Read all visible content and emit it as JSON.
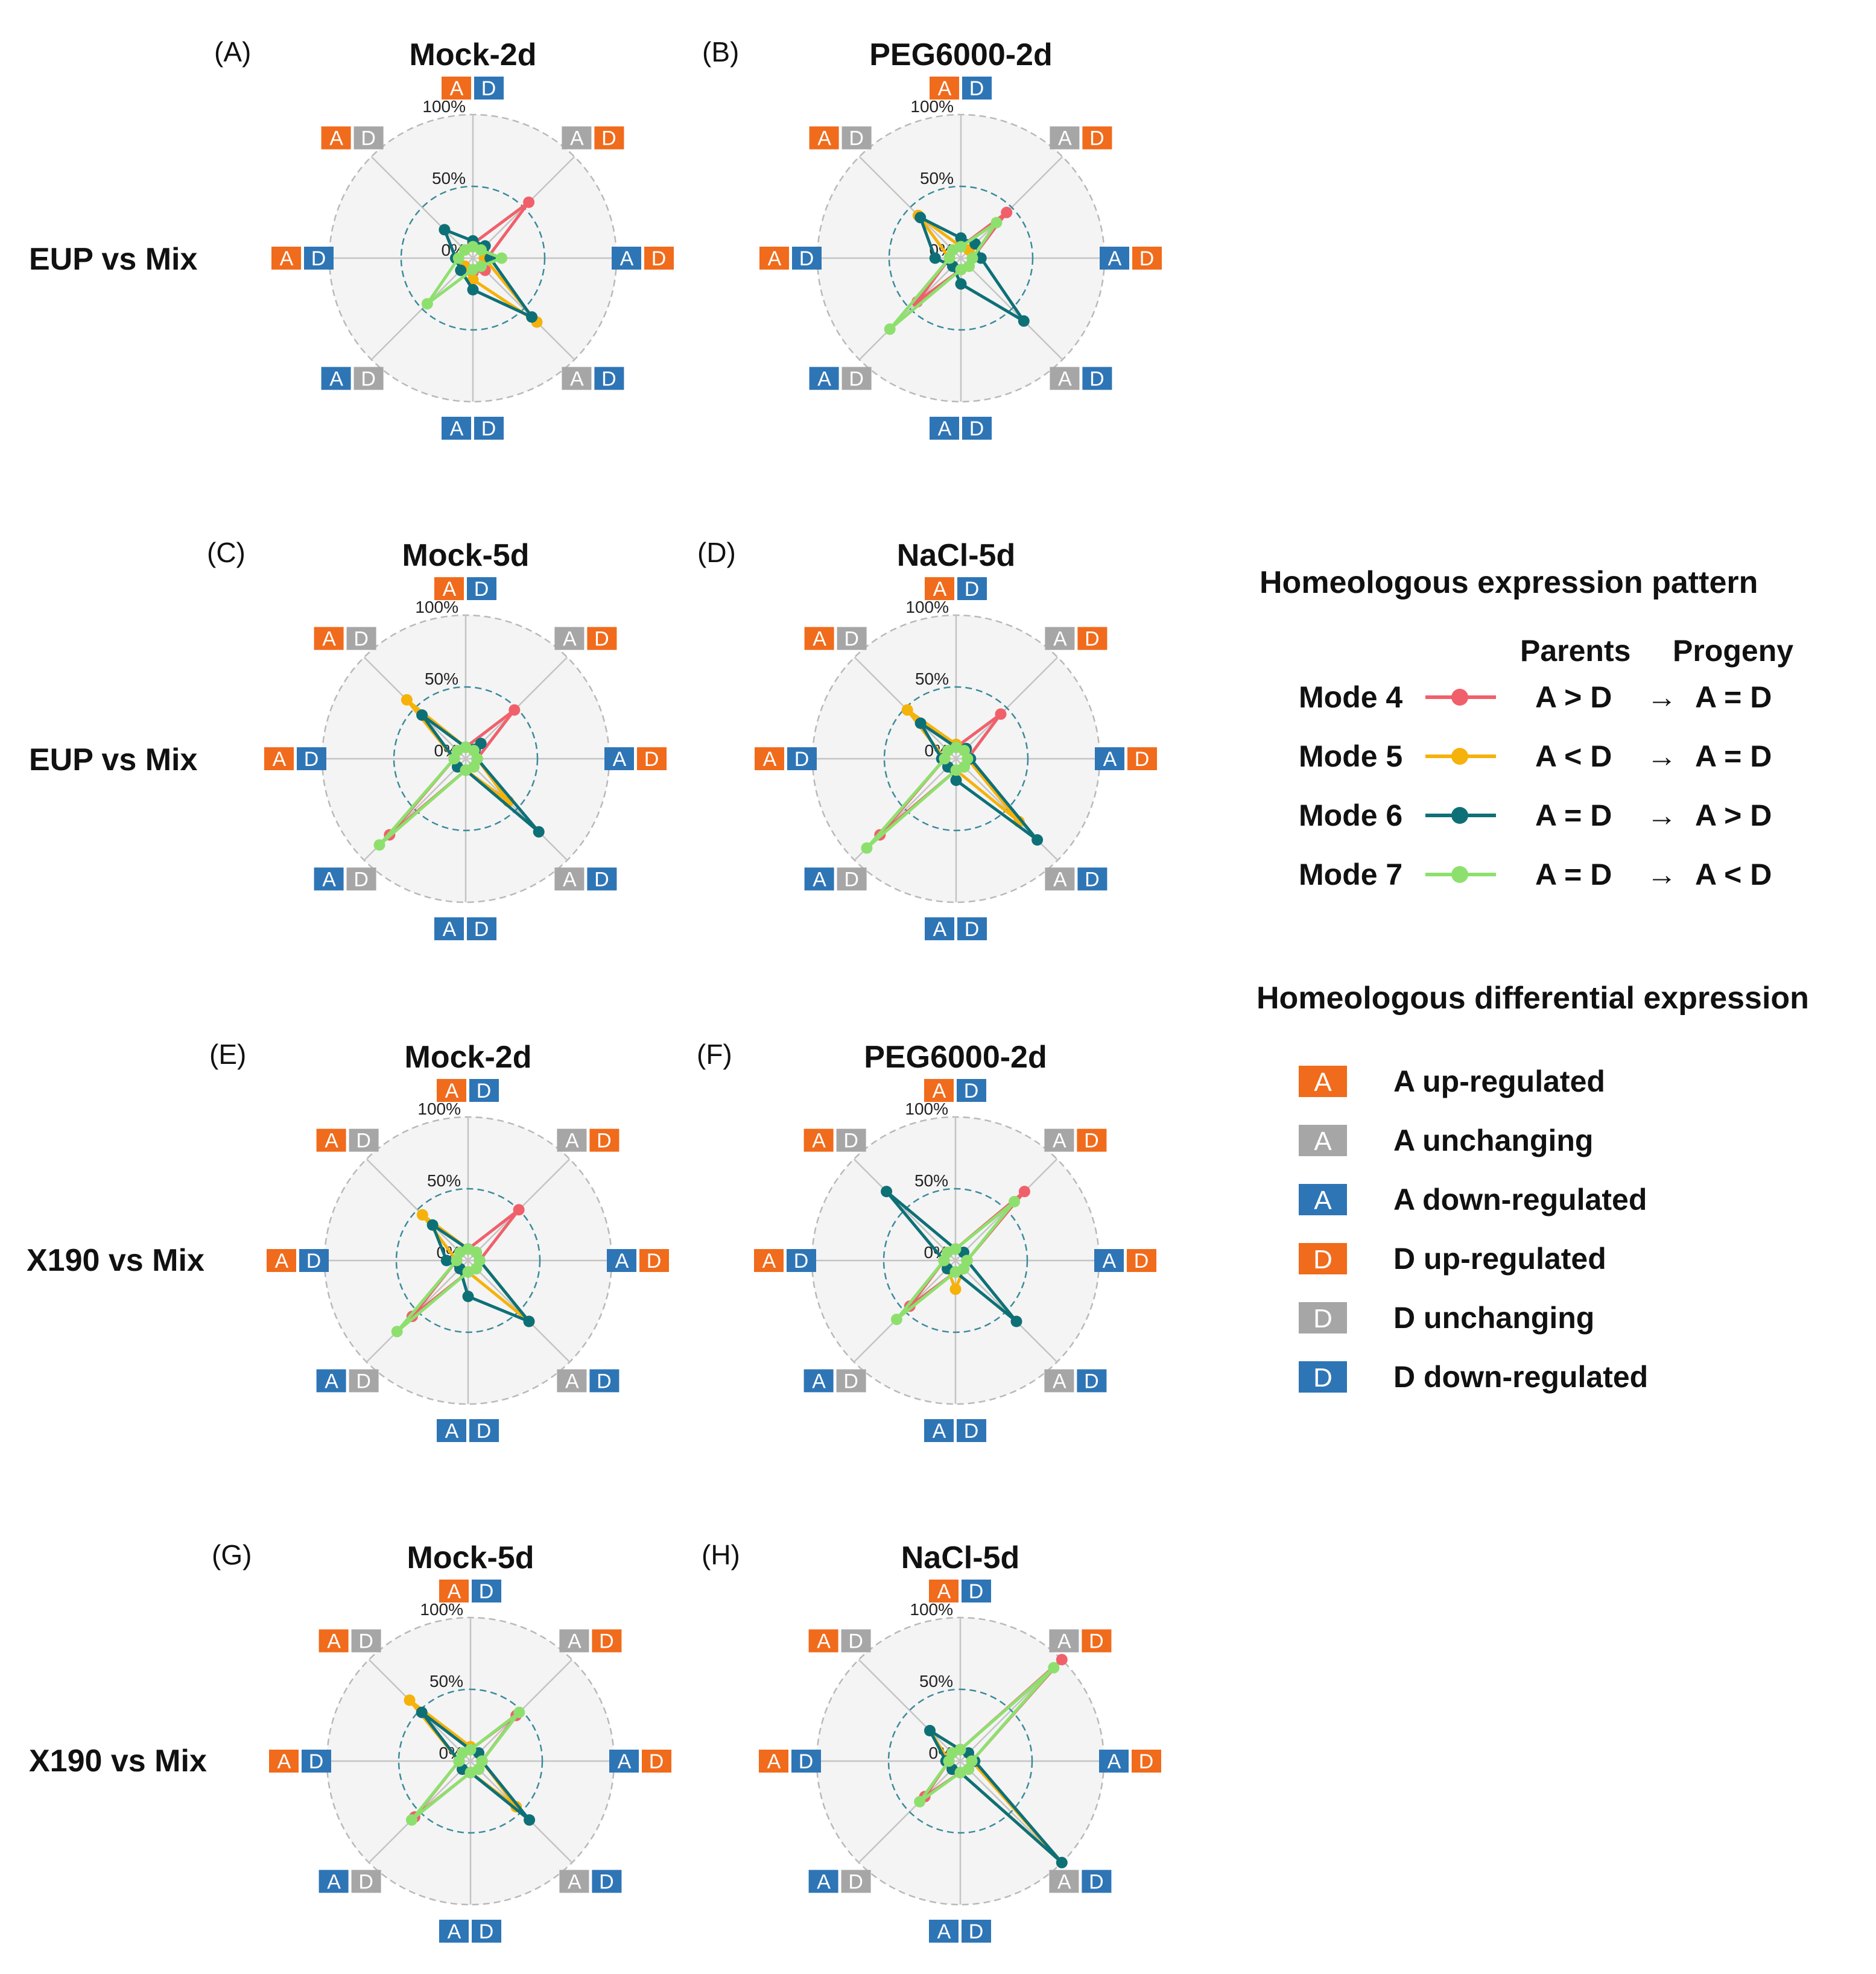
{
  "colors": {
    "up": "#f06b1c",
    "unchanging": "#a6a6a6",
    "down": "#2e75b6",
    "mode4": "#f0606b",
    "mode5": "#f5b20a",
    "mode6": "#0e7077",
    "mode7": "#8ee06e",
    "bg": "#f4f4f4"
  },
  "row_labels": [
    "EUP vs Mix",
    "EUP vs Mix",
    "X190 vs Mix",
    "X190 vs Mix"
  ],
  "axes": [
    {
      "a": "up",
      "d": "down"
    },
    {
      "a": "unchanging",
      "d": "up"
    },
    {
      "a": "down",
      "d": "up"
    },
    {
      "a": "unchanging",
      "d": "down"
    },
    {
      "a": "down",
      "d": "down"
    },
    {
      "a": "down",
      "d": "unchanging"
    },
    {
      "a": "up",
      "d": "down"
    },
    {
      "a": "up",
      "d": "unchanging"
    }
  ],
  "chart_data": [
    {
      "type": "radar",
      "panel": "(A)",
      "title": "Mock-2d",
      "ticks": [
        "100%",
        "50%",
        "0%"
      ],
      "rmax": 100,
      "series": [
        {
          "name": "Mode 4",
          "values": [
            10,
            55,
            10,
            12,
            10,
            8,
            10,
            8
          ]
        },
        {
          "name": "Mode 5",
          "values": [
            8,
            10,
            8,
            63,
            15,
            8,
            10,
            8
          ]
        },
        {
          "name": "Mode 6",
          "values": [
            12,
            12,
            12,
            58,
            22,
            12,
            12,
            28
          ]
        },
        {
          "name": "Mode 7",
          "values": [
            8,
            8,
            20,
            8,
            8,
            45,
            10,
            8
          ]
        }
      ]
    },
    {
      "type": "radar",
      "panel": "(B)",
      "title": "PEG6000-2d",
      "ticks": [
        "100%",
        "50%",
        "0%"
      ],
      "rmax": 100,
      "series": [
        {
          "name": "Mode 4",
          "values": [
            8,
            45,
            8,
            8,
            8,
            43,
            8,
            8
          ]
        },
        {
          "name": "Mode 5",
          "values": [
            8,
            8,
            8,
            8,
            8,
            8,
            8,
            42
          ]
        },
        {
          "name": "Mode 6",
          "values": [
            14,
            14,
            14,
            62,
            18,
            8,
            18,
            40
          ]
        },
        {
          "name": "Mode 7",
          "values": [
            8,
            35,
            8,
            8,
            8,
            70,
            8,
            8
          ]
        }
      ]
    },
    {
      "type": "radar",
      "panel": "(C)",
      "title": "Mock-5d",
      "ticks": [
        "100%",
        "50%",
        "0%"
      ],
      "rmax": 100,
      "series": [
        {
          "name": "Mode 4",
          "values": [
            8,
            48,
            8,
            8,
            8,
            75,
            8,
            8
          ]
        },
        {
          "name": "Mode 5",
          "values": [
            8,
            8,
            8,
            42,
            8,
            8,
            8,
            58
          ]
        },
        {
          "name": "Mode 6",
          "values": [
            8,
            15,
            8,
            72,
            8,
            8,
            8,
            43
          ]
        },
        {
          "name": "Mode 7",
          "values": [
            8,
            8,
            8,
            8,
            8,
            85,
            8,
            8
          ]
        }
      ]
    },
    {
      "type": "radar",
      "panel": "(D)",
      "title": "NaCl-5d",
      "ticks": [
        "100%",
        "50%",
        "0%"
      ],
      "rmax": 100,
      "series": [
        {
          "name": "Mode 4",
          "values": [
            8,
            44,
            8,
            8,
            8,
            75,
            8,
            8
          ]
        },
        {
          "name": "Mode 5",
          "values": [
            10,
            10,
            8,
            62,
            8,
            8,
            8,
            48
          ]
        },
        {
          "name": "Mode 6",
          "values": [
            8,
            10,
            10,
            80,
            15,
            8,
            10,
            35
          ]
        },
        {
          "name": "Mode 7",
          "values": [
            8,
            8,
            8,
            8,
            8,
            88,
            8,
            8
          ]
        }
      ]
    },
    {
      "type": "radar",
      "panel": "(E)",
      "title": "Mock-2d",
      "ticks": [
        "100%",
        "50%",
        "0%"
      ],
      "rmax": 100,
      "series": [
        {
          "name": "Mode 4",
          "values": [
            8,
            50,
            8,
            8,
            8,
            55,
            8,
            8
          ]
        },
        {
          "name": "Mode 5",
          "values": [
            8,
            8,
            8,
            60,
            8,
            8,
            8,
            45
          ]
        },
        {
          "name": "Mode 6",
          "values": [
            8,
            8,
            8,
            60,
            25,
            8,
            15,
            35
          ]
        },
        {
          "name": "Mode 7",
          "values": [
            8,
            8,
            8,
            8,
            8,
            70,
            8,
            8
          ]
        }
      ]
    },
    {
      "type": "radar",
      "panel": "(F)",
      "title": "PEG6000-2d",
      "ticks": [
        "100%",
        "50%",
        "0%"
      ],
      "rmax": 100,
      "series": [
        {
          "name": "Mode 4",
          "values": [
            8,
            68,
            8,
            8,
            8,
            45,
            8,
            8
          ]
        },
        {
          "name": "Mode 5",
          "values": [
            8,
            8,
            8,
            8,
            20,
            8,
            8,
            8
          ]
        },
        {
          "name": "Mode 6",
          "values": [
            8,
            8,
            8,
            60,
            8,
            8,
            8,
            68
          ]
        },
        {
          "name": "Mode 7",
          "values": [
            8,
            58,
            8,
            8,
            8,
            58,
            8,
            8
          ]
        }
      ]
    },
    {
      "type": "radar",
      "panel": "(G)",
      "title": "Mock-5d",
      "ticks": [
        "100%",
        "50%",
        "0%"
      ],
      "rmax": 100,
      "series": [
        {
          "name": "Mode 4",
          "values": [
            8,
            45,
            8,
            8,
            8,
            55,
            8,
            8
          ]
        },
        {
          "name": "Mode 5",
          "values": [
            10,
            8,
            8,
            45,
            8,
            8,
            8,
            60
          ]
        },
        {
          "name": "Mode 6",
          "values": [
            8,
            8,
            8,
            58,
            8,
            8,
            8,
            48
          ]
        },
        {
          "name": "Mode 7",
          "values": [
            8,
            48,
            8,
            8,
            8,
            58,
            8,
            8
          ]
        }
      ]
    },
    {
      "type": "radar",
      "panel": "(H)",
      "title": "NaCl-5d",
      "ticks": [
        "100%",
        "50%",
        "0%"
      ],
      "rmax": 100,
      "series": [
        {
          "name": "Mode 4",
          "values": [
            8,
            100,
            8,
            8,
            8,
            35,
            8,
            8
          ]
        },
        {
          "name": "Mode 5",
          "values": [
            8,
            8,
            8,
            100,
            8,
            8,
            8,
            30
          ]
        },
        {
          "name": "Mode 6",
          "values": [
            8,
            8,
            10,
            100,
            8,
            8,
            10,
            30
          ]
        },
        {
          "name": "Mode 7",
          "values": [
            8,
            92,
            8,
            8,
            8,
            40,
            8,
            8
          ]
        }
      ]
    }
  ],
  "legend": {
    "pattern_title": "Homeologous expression pattern",
    "col_parents": "Parents",
    "col_progeny": "Progeny",
    "modes": [
      {
        "name": "Mode 4",
        "parents": "A > D",
        "progeny": "A = D"
      },
      {
        "name": "Mode 5",
        "parents": "A < D",
        "progeny": "A = D"
      },
      {
        "name": "Mode 6",
        "parents": "A = D",
        "progeny": "A > D"
      },
      {
        "name": "Mode 7",
        "parents": "A = D",
        "progeny": "A < D"
      }
    ],
    "diff_title": "Homeologous differential expression",
    "diff_items": [
      {
        "glyph": "A",
        "state": "up",
        "label": "A up-regulated"
      },
      {
        "glyph": "A",
        "state": "unchanging",
        "label": "A unchanging"
      },
      {
        "glyph": "A",
        "state": "down",
        "label": "A down-regulated"
      },
      {
        "glyph": "D",
        "state": "up",
        "label": "D up-regulated"
      },
      {
        "glyph": "D",
        "state": "unchanging",
        "label": "D unchanging"
      },
      {
        "glyph": "D",
        "state": "down",
        "label": "D down-regulated"
      }
    ]
  }
}
